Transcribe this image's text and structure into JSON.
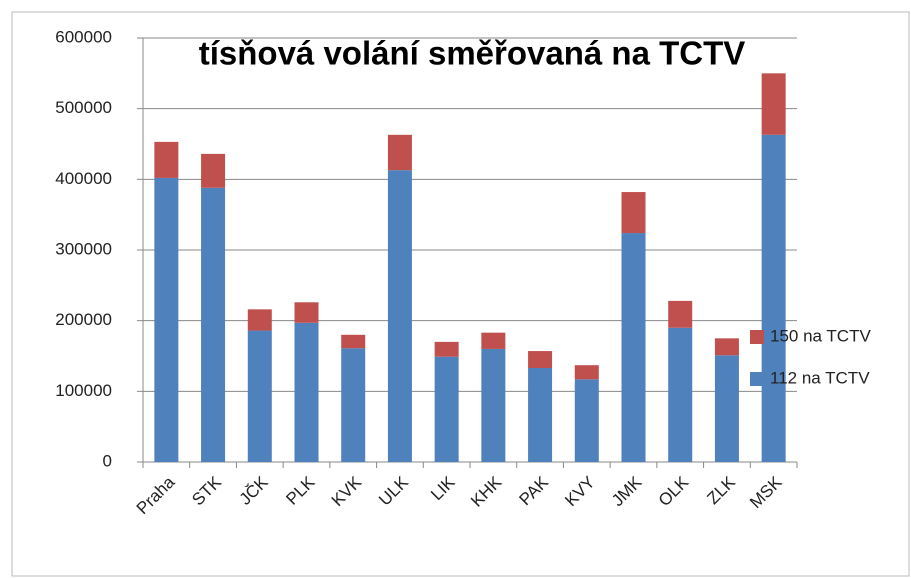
{
  "chart_data": {
    "type": "stacked_bar",
    "title": "tísňová volání směřovaná na TCTV",
    "categories": [
      "Praha",
      "STK",
      "JČK",
      "PLK",
      "KVK",
      "ULK",
      "LIK",
      "KHK",
      "PAK",
      "KVY",
      "JMK",
      "OLK",
      "ZLK",
      "MSK"
    ],
    "series": [
      {
        "name": "112 na TCTV",
        "color": "#4f81bd",
        "values": [
          402000,
          388000,
          186000,
          197000,
          161000,
          413000,
          149000,
          160000,
          133000,
          117000,
          324000,
          190000,
          151000,
          463000
        ]
      },
      {
        "name": "150 na TCTV",
        "color": "#c0504d",
        "values": [
          51000,
          48000,
          30000,
          29000,
          19000,
          50000,
          21000,
          23000,
          24000,
          20000,
          58000,
          38000,
          24000,
          87000
        ]
      }
    ],
    "ylim": [
      0,
      600000
    ],
    "yticks": [
      0,
      100000,
      200000,
      300000,
      400000,
      500000,
      600000
    ],
    "grid": true,
    "legend": "right"
  }
}
